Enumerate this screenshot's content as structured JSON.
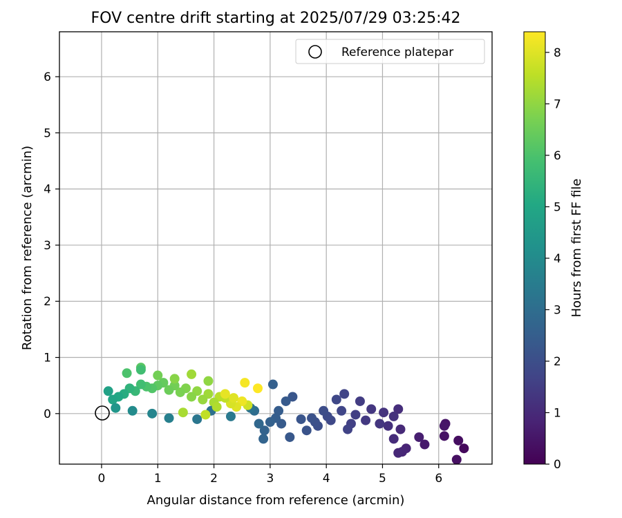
{
  "chart_data": {
    "type": "scatter",
    "title": "FOV centre drift starting at 2025/07/29 03:25:42",
    "xlabel": "Angular distance from reference (arcmin)",
    "ylabel": "Rotation from reference (arcmin)",
    "xlim": [
      -0.75,
      6.95
    ],
    "ylim": [
      -0.9,
      6.8
    ],
    "xticks": [
      0,
      1,
      2,
      3,
      4,
      5,
      6
    ],
    "yticks": [
      0,
      1,
      2,
      3,
      4,
      5,
      6
    ],
    "grid": true,
    "legend": {
      "placement": "top-right",
      "entries": [
        "Reference platepar"
      ]
    },
    "reference_point": {
      "x": 0,
      "y": 0
    },
    "colorbar": {
      "label": "Hours from first FF file",
      "colormap": "viridis",
      "range": [
        0,
        8.4
      ],
      "ticks": [
        0,
        1,
        2,
        3,
        4,
        5,
        6,
        7,
        8
      ]
    },
    "series": [
      {
        "color_by": "hours",
        "x": [
          6.45,
          6.35,
          6.32,
          6.12,
          6.1,
          6.1,
          5.75,
          5.65,
          5.42,
          5.35,
          5.28,
          5.32,
          5.2,
          5.28,
          5.1,
          5.2,
          5.02,
          4.95,
          4.8,
          4.7,
          4.6,
          4.52,
          4.44,
          4.38,
          4.32,
          4.27,
          4.18,
          4.08,
          4.02,
          3.95,
          3.85,
          3.8,
          3.74,
          3.65,
          3.55,
          3.4,
          3.35,
          3.28,
          3.2,
          3.15,
          3.1,
          3.05,
          3.0,
          2.9,
          2.88,
          2.8,
          2.72,
          2.65,
          2.6,
          2.5,
          2.4,
          2.3,
          2.2,
          2.1,
          2.0,
          1.9,
          1.8,
          1.7,
          1.6,
          1.5,
          1.4,
          1.3,
          1.2,
          1.1,
          1.0,
          0.9,
          0.8,
          0.7,
          0.6,
          0.5,
          0.4,
          0.3,
          0.2,
          0.12,
          0.7,
          1.0,
          1.3,
          1.6,
          1.9,
          2.2,
          2.55,
          2.78,
          1.95,
          1.7,
          2.3,
          1.2,
          0.9,
          0.55,
          0.25,
          0.45,
          0.7,
          1.45,
          1.85,
          2.05,
          2.35
        ],
        "y": [
          -0.62,
          -0.48,
          -0.82,
          -0.18,
          -0.4,
          -0.22,
          -0.55,
          -0.42,
          -0.62,
          -0.68,
          -0.7,
          -0.28,
          -0.45,
          0.08,
          -0.22,
          -0.05,
          0.02,
          -0.18,
          0.08,
          -0.12,
          0.22,
          -0.02,
          -0.18,
          -0.28,
          0.35,
          0.05,
          0.25,
          -0.12,
          -0.05,
          0.05,
          -0.22,
          -0.15,
          -0.08,
          -0.3,
          -0.1,
          0.3,
          -0.42,
          0.22,
          -0.18,
          0.05,
          -0.08,
          0.52,
          -0.15,
          -0.3,
          -0.45,
          -0.18,
          0.05,
          0.1,
          0.15,
          0.22,
          0.12,
          0.18,
          0.28,
          0.3,
          0.2,
          0.35,
          0.25,
          0.4,
          0.3,
          0.45,
          0.38,
          0.5,
          0.42,
          0.55,
          0.5,
          0.45,
          0.48,
          0.52,
          0.4,
          0.45,
          0.35,
          0.3,
          0.25,
          0.4,
          0.82,
          0.68,
          0.62,
          0.7,
          0.58,
          0.35,
          0.55,
          0.45,
          0.05,
          -0.1,
          -0.05,
          -0.08,
          0.0,
          0.05,
          0.1,
          0.72,
          0.78,
          0.02,
          -0.02,
          0.12,
          0.28
        ],
        "hours": [
          0.2,
          0.3,
          0.35,
          0.45,
          0.4,
          0.5,
          0.6,
          0.7,
          0.85,
          0.9,
          0.95,
          1.0,
          1.05,
          1.1,
          1.15,
          1.2,
          1.25,
          1.3,
          1.35,
          1.4,
          1.5,
          1.55,
          1.6,
          1.65,
          1.7,
          1.75,
          1.8,
          1.85,
          1.9,
          1.95,
          2.0,
          2.05,
          2.1,
          2.15,
          2.2,
          2.25,
          2.3,
          2.35,
          2.4,
          2.45,
          2.5,
          2.55,
          2.6,
          2.65,
          2.7,
          2.8,
          3.0,
          3.2,
          7.8,
          8.2,
          8.0,
          7.9,
          7.6,
          7.5,
          7.3,
          7.2,
          7.1,
          7.0,
          6.9,
          6.8,
          6.7,
          6.6,
          6.5,
          6.4,
          6.3,
          6.1,
          6.0,
          5.8,
          5.6,
          5.4,
          5.2,
          5.0,
          4.9,
          4.8,
          6.2,
          6.6,
          6.9,
          7.2,
          7.0,
          8.1,
          8.3,
          8.4,
          3.1,
          3.3,
          3.4,
          3.6,
          3.8,
          4.0,
          4.4,
          6.0,
          5.8,
          7.3,
          7.6,
          7.4,
          8.0
        ]
      }
    ]
  }
}
